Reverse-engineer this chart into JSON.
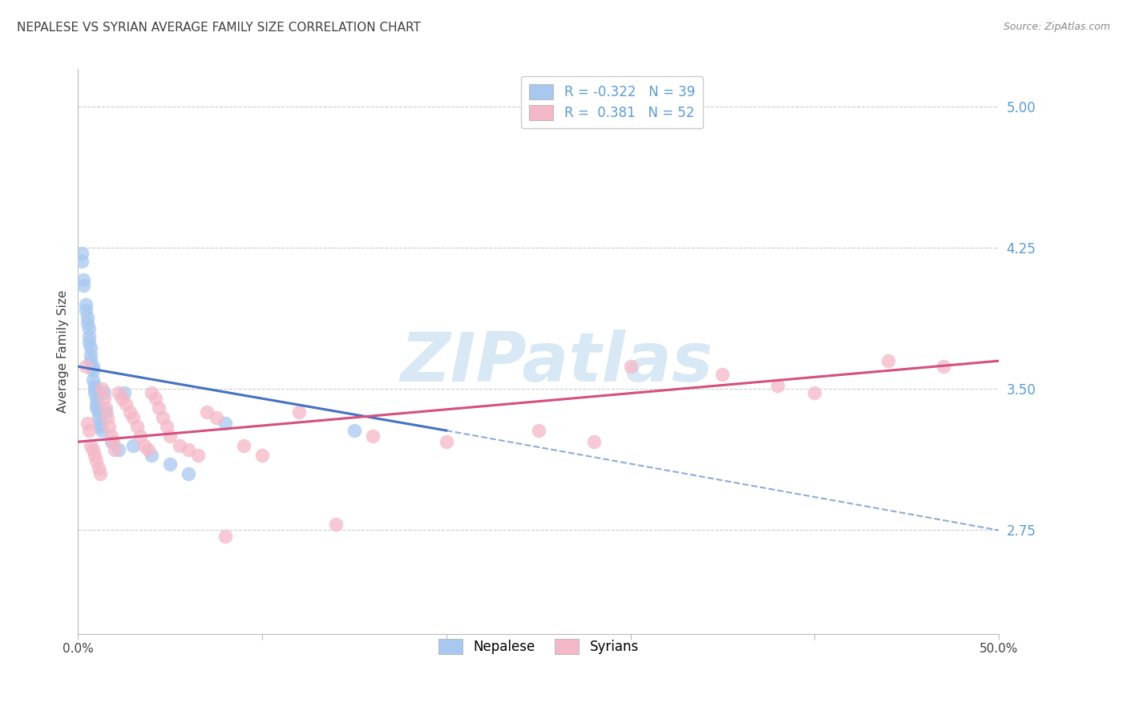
{
  "title": "NEPALESE VS SYRIAN AVERAGE FAMILY SIZE CORRELATION CHART",
  "source": "Source: ZipAtlas.com",
  "ylabel": "Average Family Size",
  "ytick_values": [
    2.75,
    3.5,
    4.25,
    5.0
  ],
  "ytick_labels": [
    "2.75",
    "3.50",
    "4.25",
    "5.00"
  ],
  "xlim": [
    0.0,
    0.5
  ],
  "ylim": [
    2.2,
    5.2
  ],
  "legend_entries": [
    {
      "label_r": "R = -0.322",
      "label_n": "N = 39",
      "color": "#A8C8F0"
    },
    {
      "label_r": "R =  0.381",
      "label_n": "N = 52",
      "color": "#F4B8C8"
    }
  ],
  "legend_bottom": [
    {
      "label": "Nepalese",
      "color": "#A8C8F0"
    },
    {
      "label": "Syrians",
      "color": "#F4B8C8"
    }
  ],
  "nepalese_scatter": [
    [
      0.002,
      4.18
    ],
    [
      0.002,
      4.22
    ],
    [
      0.003,
      4.08
    ],
    [
      0.003,
      4.05
    ],
    [
      0.004,
      3.95
    ],
    [
      0.004,
      3.92
    ],
    [
      0.005,
      3.88
    ],
    [
      0.005,
      3.85
    ],
    [
      0.006,
      3.82
    ],
    [
      0.006,
      3.78
    ],
    [
      0.006,
      3.75
    ],
    [
      0.007,
      3.72
    ],
    [
      0.007,
      3.68
    ],
    [
      0.007,
      3.65
    ],
    [
      0.008,
      3.62
    ],
    [
      0.008,
      3.6
    ],
    [
      0.008,
      3.55
    ],
    [
      0.009,
      3.52
    ],
    [
      0.009,
      3.5
    ],
    [
      0.009,
      3.48
    ],
    [
      0.01,
      3.45
    ],
    [
      0.01,
      3.42
    ],
    [
      0.01,
      3.4
    ],
    [
      0.011,
      3.38
    ],
    [
      0.011,
      3.35
    ],
    [
      0.012,
      3.32
    ],
    [
      0.012,
      3.3
    ],
    [
      0.013,
      3.28
    ],
    [
      0.014,
      3.48
    ],
    [
      0.015,
      3.38
    ],
    [
      0.018,
      3.22
    ],
    [
      0.022,
      3.18
    ],
    [
      0.025,
      3.48
    ],
    [
      0.03,
      3.2
    ],
    [
      0.04,
      3.15
    ],
    [
      0.05,
      3.1
    ],
    [
      0.06,
      3.05
    ],
    [
      0.08,
      3.32
    ],
    [
      0.15,
      3.28
    ]
  ],
  "syrian_scatter": [
    [
      0.004,
      3.62
    ],
    [
      0.005,
      3.32
    ],
    [
      0.006,
      3.28
    ],
    [
      0.007,
      3.2
    ],
    [
      0.008,
      3.18
    ],
    [
      0.009,
      3.15
    ],
    [
      0.01,
      3.12
    ],
    [
      0.011,
      3.08
    ],
    [
      0.012,
      3.05
    ],
    [
      0.013,
      3.5
    ],
    [
      0.014,
      3.45
    ],
    [
      0.015,
      3.4
    ],
    [
      0.016,
      3.35
    ],
    [
      0.017,
      3.3
    ],
    [
      0.018,
      3.25
    ],
    [
      0.019,
      3.22
    ],
    [
      0.02,
      3.18
    ],
    [
      0.022,
      3.48
    ],
    [
      0.024,
      3.45
    ],
    [
      0.026,
      3.42
    ],
    [
      0.028,
      3.38
    ],
    [
      0.03,
      3.35
    ],
    [
      0.032,
      3.3
    ],
    [
      0.034,
      3.25
    ],
    [
      0.036,
      3.2
    ],
    [
      0.038,
      3.18
    ],
    [
      0.04,
      3.48
    ],
    [
      0.042,
      3.45
    ],
    [
      0.044,
      3.4
    ],
    [
      0.046,
      3.35
    ],
    [
      0.048,
      3.3
    ],
    [
      0.05,
      3.25
    ],
    [
      0.055,
      3.2
    ],
    [
      0.06,
      3.18
    ],
    [
      0.065,
      3.15
    ],
    [
      0.07,
      3.38
    ],
    [
      0.075,
      3.35
    ],
    [
      0.08,
      2.72
    ],
    [
      0.09,
      3.2
    ],
    [
      0.1,
      3.15
    ],
    [
      0.12,
      3.38
    ],
    [
      0.14,
      2.78
    ],
    [
      0.16,
      3.25
    ],
    [
      0.2,
      3.22
    ],
    [
      0.25,
      3.28
    ],
    [
      0.28,
      3.22
    ],
    [
      0.3,
      3.62
    ],
    [
      0.35,
      3.58
    ],
    [
      0.38,
      3.52
    ],
    [
      0.4,
      3.48
    ],
    [
      0.44,
      3.65
    ],
    [
      0.47,
      3.62
    ]
  ],
  "nepalese_color": "#A8C8F0",
  "syrian_color": "#F4B8C8",
  "nepalese_line_solid": {
    "x0": 0.0,
    "y0": 3.62,
    "x1": 0.2,
    "y1": 3.28
  },
  "nepalese_line_dashed": {
    "x0": 0.2,
    "y0": 3.28,
    "x1": 0.5,
    "y1": 2.75
  },
  "syrian_line": {
    "x0": 0.0,
    "y0": 3.22,
    "x1": 0.5,
    "y1": 3.65
  },
  "nepalese_line_color": "#4472C4",
  "syrian_line_color": "#D45080",
  "watermark_text": "ZIPatlas",
  "watermark_color": "#D8E8F5",
  "background_color": "#FFFFFF",
  "grid_color": "#CCCCCC",
  "title_color": "#404040",
  "axis_label_color": "#404040",
  "right_tick_color": "#5B9BD5",
  "title_fontsize": 11,
  "source_fontsize": 9,
  "tick_fontsize": 11,
  "legend_fontsize": 12
}
